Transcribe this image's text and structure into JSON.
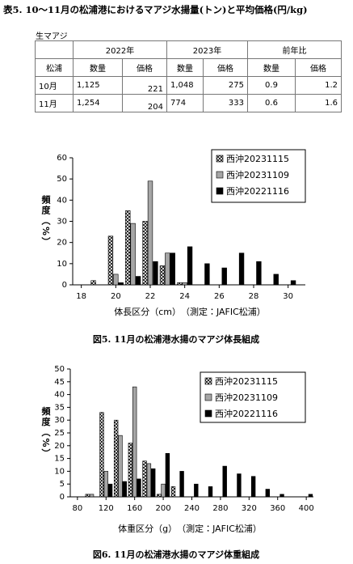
{
  "table": {
    "title": "表5. 10〜11月の松浦港におけるマアジ水揚量(トン)と平均価格(円/kg)",
    "product": "生マアジ",
    "years": [
      "2022年",
      "2023年",
      "前年比"
    ],
    "row_header": "松浦",
    "columns": [
      "数量",
      "価格",
      "数量",
      "価格",
      "数量",
      "価格"
    ],
    "rows": [
      [
        "10月",
        "1,125",
        "221",
        "1,048",
        "275",
        "0.9",
        "1.2"
      ],
      [
        "11月",
        "1,254",
        "204",
        "774",
        "333",
        "0.6",
        "1.6"
      ]
    ]
  },
  "chart_data": [
    {
      "type": "bar",
      "xlabel": "体長区分（cm）　（測定：JAFIC松浦）",
      "ylabel": "頻度（%）",
      "caption": "図5. 11月の松浦港水揚のマアジ体長組成",
      "x": [
        19,
        20,
        21,
        22,
        23,
        24,
        25,
        26,
        27,
        28,
        29,
        30
      ],
      "xlim": [
        17.5,
        31
      ],
      "xticks": [
        18,
        20,
        22,
        24,
        26,
        28,
        30
      ],
      "ylim": [
        0,
        60
      ],
      "yticks": [
        0,
        10,
        20,
        30,
        40,
        50,
        60
      ],
      "legend": "upper right",
      "series": [
        {
          "name": "西沖20231115",
          "color": "#000000",
          "pattern": "crosshatch",
          "values": [
            2,
            23,
            35,
            30,
            9,
            1,
            null,
            null,
            null,
            null,
            null,
            null
          ]
        },
        {
          "name": "西沖20231109",
          "color": "#a6a6a6",
          "values": [
            null,
            5,
            29,
            49,
            15,
            1,
            null,
            null,
            null,
            null,
            null,
            null
          ]
        },
        {
          "name": "西沖20221116",
          "color": "#000000",
          "values": [
            null,
            1,
            4,
            11,
            15,
            18,
            10,
            8,
            15,
            11,
            5,
            2
          ]
        }
      ]
    },
    {
      "type": "bar",
      "xlabel": "体重区分（g）　（測定：JAFIC松浦）",
      "ylabel": "頻度（%）",
      "caption": "図6. 11月の松浦港水揚のマアジ体重組成",
      "x": [
        100,
        120,
        140,
        160,
        180,
        200,
        220,
        240,
        260,
        280,
        300,
        320,
        340,
        360,
        380,
        400
      ],
      "xlim": [
        70,
        410
      ],
      "xticks": [
        80,
        120,
        160,
        200,
        240,
        280,
        320,
        360,
        400
      ],
      "ylim": [
        0,
        50
      ],
      "yticks": [
        0,
        5,
        10,
        15,
        20,
        25,
        30,
        35,
        40,
        45,
        50
      ],
      "legend": "upper right",
      "series": [
        {
          "name": "西沖20231115",
          "color": "#000000",
          "pattern": "crosshatch",
          "values": [
            1,
            33,
            30,
            21,
            14,
            1,
            4,
            null,
            null,
            null,
            null,
            null,
            null,
            null,
            null,
            null
          ]
        },
        {
          "name": "西沖20231109",
          "color": "#a6a6a6",
          "values": [
            1,
            10,
            24,
            43,
            13,
            5,
            null,
            null,
            null,
            null,
            null,
            null,
            null,
            null,
            null,
            null
          ]
        },
        {
          "name": "西沖20221116",
          "color": "#000000",
          "values": [
            null,
            5,
            6,
            7,
            11,
            17,
            10,
            5,
            4,
            12,
            9,
            8,
            3,
            1,
            null,
            1
          ]
        }
      ]
    }
  ]
}
